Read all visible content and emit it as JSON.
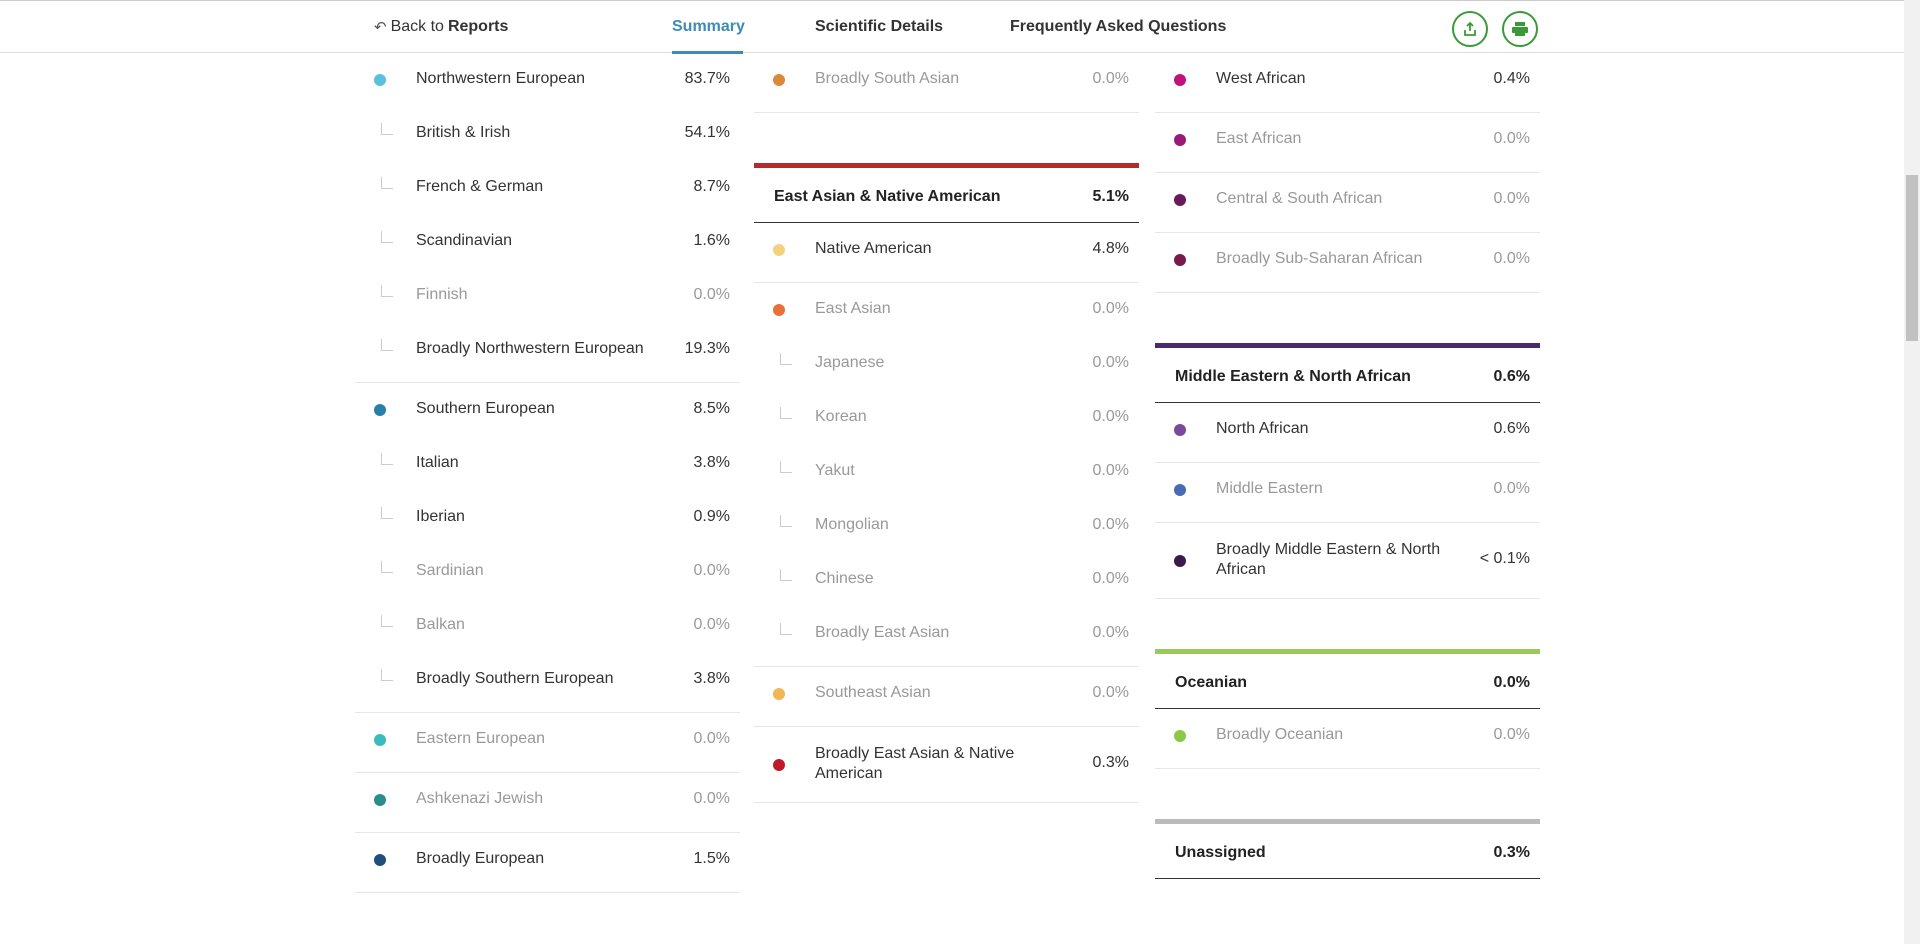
{
  "nav": {
    "back_prefix": "Back to",
    "back_target": "Reports",
    "tabs": [
      "Summary",
      "Scientific Details",
      "Frequently Asked Questions"
    ],
    "active_tab": "Summary"
  },
  "col1": {
    "nw": {
      "name": "Northwestern European",
      "pct": "83.7%",
      "color": "#5bc0de"
    },
    "nw_sub": [
      {
        "name": "British & Irish",
        "pct": "54.1%"
      },
      {
        "name": "French & German",
        "pct": "8.7%"
      },
      {
        "name": "Scandinavian",
        "pct": "1.6%"
      },
      {
        "name": "Finnish",
        "pct": "0.0%"
      },
      {
        "name": "Broadly Northwestern European",
        "pct": "19.3%"
      }
    ],
    "se": {
      "name": "Southern European",
      "pct": "8.5%",
      "color": "#2a7fa8"
    },
    "se_sub": [
      {
        "name": "Italian",
        "pct": "3.8%"
      },
      {
        "name": "Iberian",
        "pct": "0.9%"
      },
      {
        "name": "Sardinian",
        "pct": "0.0%"
      },
      {
        "name": "Balkan",
        "pct": "0.0%"
      },
      {
        "name": "Broadly Southern European",
        "pct": "3.8%"
      }
    ],
    "ee": {
      "name": "Eastern European",
      "pct": "0.0%",
      "color": "#3bbcbc"
    },
    "aj": {
      "name": "Ashkenazi Jewish",
      "pct": "0.0%",
      "color": "#2a8c8c"
    },
    "be": {
      "name": "Broadly European",
      "pct": "1.5%",
      "color": "#1f4f7a"
    }
  },
  "col2": {
    "bsa": {
      "name": "Broadly South Asian",
      "pct": "0.0%",
      "color": "#d98a3a"
    },
    "eana_head": {
      "name": "East Asian & Native American",
      "pct": "5.1%",
      "color": "#b22a2a"
    },
    "na": {
      "name": "Native American",
      "pct": "4.8%",
      "color": "#f5d080"
    },
    "ea": {
      "name": "East Asian",
      "pct": "0.0%",
      "color": "#e8703a"
    },
    "ea_sub": [
      {
        "name": "Japanese",
        "pct": "0.0%"
      },
      {
        "name": "Korean",
        "pct": "0.0%"
      },
      {
        "name": "Yakut",
        "pct": "0.0%"
      },
      {
        "name": "Mongolian",
        "pct": "0.0%"
      },
      {
        "name": "Chinese",
        "pct": "0.0%"
      },
      {
        "name": "Broadly East Asian",
        "pct": "0.0%"
      }
    ],
    "sea": {
      "name": "Southeast Asian",
      "pct": "0.0%",
      "color": "#f0b850"
    },
    "beana": {
      "name": "Broadly East Asian & Native American",
      "pct": "0.3%",
      "color": "#c01a2a"
    }
  },
  "col3": {
    "wa": {
      "name": "West African",
      "pct": "0.4%",
      "color": "#c0147a"
    },
    "eaf": {
      "name": "East African",
      "pct": "0.0%",
      "color": "#9a1a7a"
    },
    "csa": {
      "name": "Central & South African",
      "pct": "0.0%",
      "color": "#6a1a5a"
    },
    "bssa": {
      "name": "Broadly Sub-Saharan African",
      "pct": "0.0%",
      "color": "#7a1a4a"
    },
    "mena_head": {
      "name": "Middle Eastern & North African",
      "pct": "0.6%",
      "color": "#4a2a6a"
    },
    "naf": {
      "name": "North African",
      "pct": "0.6%",
      "color": "#7a4a9a"
    },
    "me": {
      "name": "Middle Eastern",
      "pct": "0.0%",
      "color": "#4a6ab5"
    },
    "bmena": {
      "name": "Broadly Middle Eastern & North African",
      "pct": "< 0.1%",
      "color": "#3a1a4a"
    },
    "oc_head": {
      "name": "Oceanian",
      "pct": "0.0%",
      "color": "#9ac85a"
    },
    "boc": {
      "name": "Broadly Oceanian",
      "pct": "0.0%",
      "color": "#8ac84a"
    },
    "un_head": {
      "name": "Unassigned",
      "pct": "0.3%",
      "color": "#bbbbbb"
    }
  }
}
